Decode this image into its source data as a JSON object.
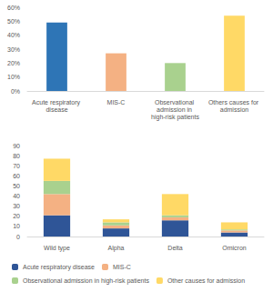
{
  "chart_data": [
    {
      "type": "bar",
      "categories": [
        "Acute respiratory disease",
        "MIS-C",
        "Observational admission in high-risk patients",
        "Others causes for admission"
      ],
      "values": [
        49,
        27,
        20,
        54
      ],
      "colors": [
        "#2e75b6",
        "#f4b183",
        "#a9d18e",
        "#ffd966"
      ],
      "ylim": [
        0,
        60
      ],
      "yticks": [
        {
          "value": 0,
          "label": "0%"
        },
        {
          "value": 10,
          "label": "10%"
        },
        {
          "value": 20,
          "label": "20%"
        },
        {
          "value": 30,
          "label": "30%"
        },
        {
          "value": 40,
          "label": "40%"
        },
        {
          "value": 50,
          "label": "50%"
        },
        {
          "value": 60,
          "label": "60%"
        }
      ],
      "grid": false
    },
    {
      "type": "bar",
      "stacked": true,
      "categories": [
        "Wild type",
        "Alpha",
        "Delta",
        "Omicron"
      ],
      "series": [
        {
          "name": "Acute respiratory disease",
          "color": "#2f5597",
          "values": [
            21,
            8,
            16,
            4
          ]
        },
        {
          "name": "MIS-C",
          "color": "#f4b183",
          "values": [
            21,
            3,
            3,
            2
          ]
        },
        {
          "name": "Observational admission in high-risk patients",
          "color": "#a9d18e",
          "values": [
            13,
            3,
            2,
            1
          ]
        },
        {
          "name": "Other causes for admission",
          "color": "#ffd966",
          "values": [
            22,
            3,
            21,
            7
          ]
        }
      ],
      "ylim": [
        0,
        90
      ],
      "yticks": [
        0,
        10,
        20,
        30,
        40,
        50,
        60,
        70,
        80,
        90
      ],
      "grid": false,
      "legend": "bottom"
    }
  ]
}
